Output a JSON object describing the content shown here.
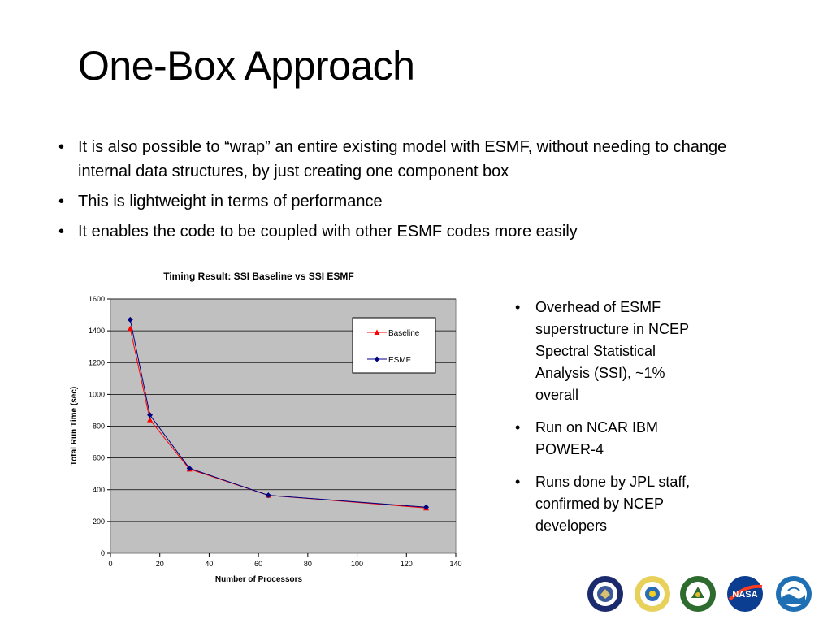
{
  "slide": {
    "title": "One-Box Approach",
    "bullets": [
      "It is also possible to “wrap” an entire existing model with ESMF, without needing to change internal data structures, by just creating one component box",
      "This is lightweight in terms of performance",
      "It enables the code to be coupled with other ESMF codes more easily"
    ],
    "side_bullets": [
      "Overhead of ESMF superstructure in NCEP Spectral Statistical Analysis (SSI), ~1% overall",
      "Run on NCAR IBM POWER-4",
      "Runs done by JPL staff, confirmed by NCEP developers"
    ]
  },
  "chart_data": {
    "type": "line",
    "title": "Timing Result: SSI Baseline vs SSI ESMF",
    "xlabel": "Number of Processors",
    "ylabel": "Total Run Time (sec)",
    "xlim": [
      0,
      140
    ],
    "ylim": [
      0,
      1600
    ],
    "x_ticks": [
      0,
      20,
      40,
      60,
      80,
      100,
      120,
      140
    ],
    "y_ticks": [
      0,
      200,
      400,
      600,
      800,
      1000,
      1200,
      1400,
      1600
    ],
    "grid": "horizontal",
    "legend_position": "top-right",
    "plot_background": "#c0c0c0",
    "series": [
      {
        "name": "Baseline",
        "color": "#ff0000",
        "marker": "triangle",
        "x": [
          8,
          16,
          32,
          64,
          128
        ],
        "y": [
          1415,
          840,
          530,
          365,
          285
        ]
      },
      {
        "name": "ESMF",
        "color": "#000080",
        "marker": "diamond",
        "x": [
          8,
          16,
          32,
          64,
          128
        ],
        "y": [
          1470,
          870,
          535,
          365,
          290
        ]
      }
    ]
  },
  "logos": [
    {
      "name": "dod-seal-icon",
      "color": "#1a2a6c"
    },
    {
      "name": "nsf-seal-icon",
      "color": "#d4b01e"
    },
    {
      "name": "doe-seal-icon",
      "color": "#2e6b2e"
    },
    {
      "name": "nasa-logo-icon",
      "color": "#0b3d91"
    },
    {
      "name": "noaa-logo-icon",
      "color": "#1f6fb5"
    }
  ]
}
